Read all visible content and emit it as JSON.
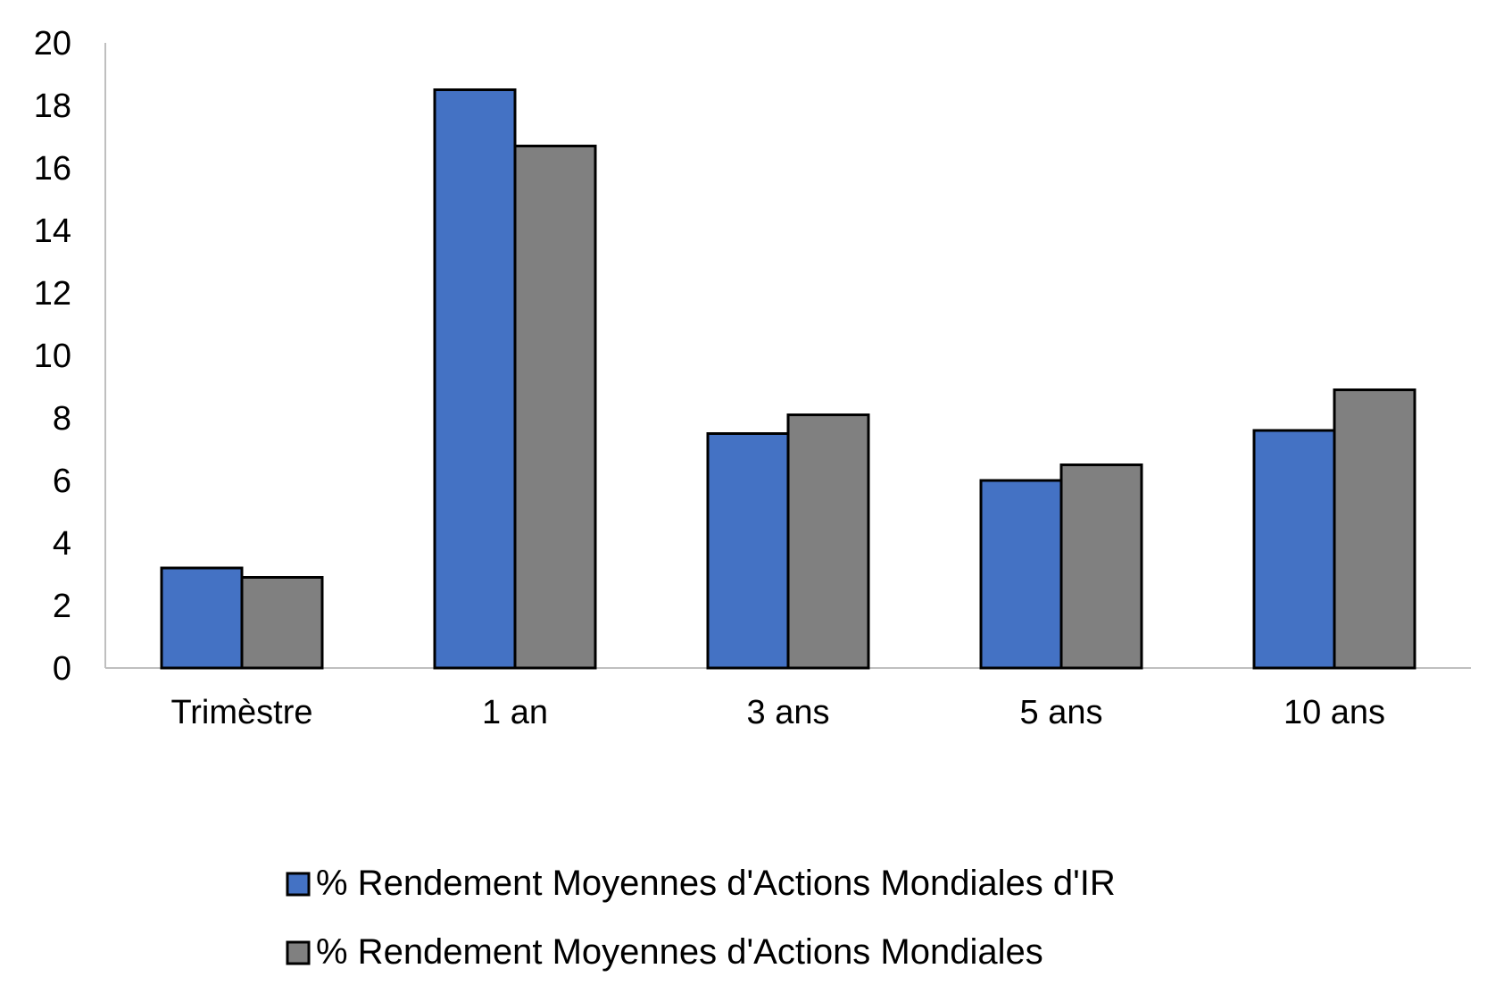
{
  "chart_data": {
    "type": "bar",
    "categories": [
      "Trimèstre",
      "1 an",
      "3 ans",
      "5 ans",
      "10 ans"
    ],
    "series": [
      {
        "name": "% Rendement Moyennes d'Actions Mondiales d'IR",
        "color": "#4472C4",
        "values": [
          3.2,
          18.5,
          7.5,
          6.0,
          7.6
        ]
      },
      {
        "name": "% Rendement Moyennes d'Actions Mondiales",
        "color": "#808080",
        "values": [
          2.9,
          16.7,
          8.1,
          6.5,
          8.9
        ]
      }
    ],
    "title": "",
    "xlabel": "",
    "ylabel": "",
    "ylim": [
      0,
      20
    ],
    "yticks": [
      "0",
      "2",
      "4",
      "6",
      "8",
      "10",
      "12",
      "14",
      "16",
      "18",
      "20"
    ],
    "grid": false,
    "legend_position": "bottom"
  }
}
